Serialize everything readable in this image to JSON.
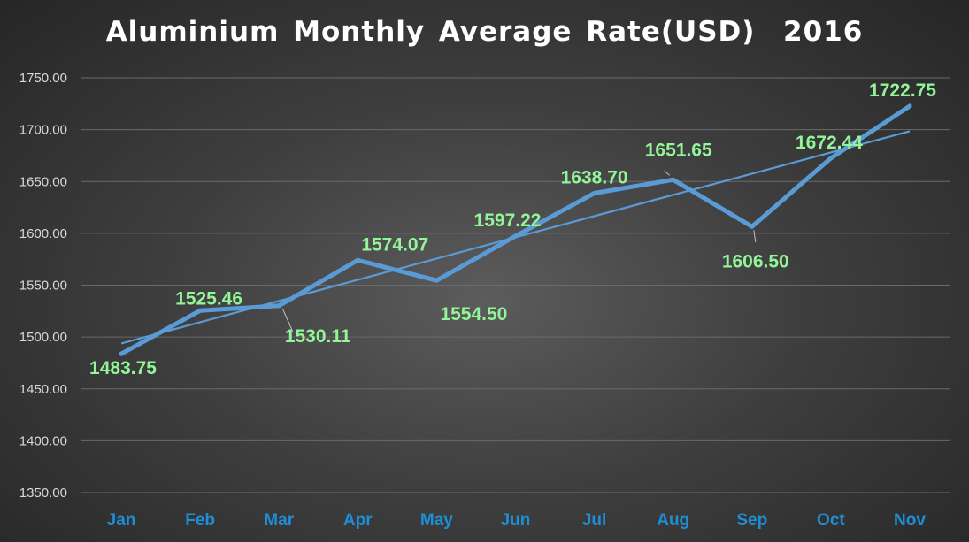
{
  "chart_data": {
    "type": "line",
    "title": "Aluminium Monthly Average Rate(USD)  2016",
    "xlabel": "",
    "ylabel": "",
    "categories": [
      "Jan",
      "Feb",
      "Mar",
      "Apr",
      "May",
      "Jun",
      "Jul",
      "Aug",
      "Sep",
      "Oct",
      "Nov"
    ],
    "series": [
      {
        "values": [
          1483.75,
          1525.46,
          1530.11,
          1574.07,
          1554.5,
          1597.22,
          1638.7,
          1651.65,
          1606.5,
          1672.44,
          1722.75
        ],
        "data_labels": [
          "1483.75",
          "1525.46",
          "1530.11",
          "1574.07",
          "1554.50",
          "1597.22",
          "1638.70",
          "1651.65",
          "1606.50",
          "1672.44",
          "1722.75"
        ]
      }
    ],
    "trendline": {
      "type": "linear",
      "shown": true
    },
    "ylim": [
      1350,
      1750
    ],
    "yticks": [
      "1350.00",
      "1400.00",
      "1450.00",
      "1500.00",
      "1550.00",
      "1600.00",
      "1650.00",
      "1700.00",
      "1750.00"
    ],
    "grid": true,
    "legend": "none",
    "colors": {
      "line": "#5b9bd5",
      "data_label": "#92f598",
      "category_label": "#1e8fd6",
      "tick_label": "#d9d9d9",
      "gridline": "#6a6a6a",
      "title": "#ffffff"
    }
  }
}
